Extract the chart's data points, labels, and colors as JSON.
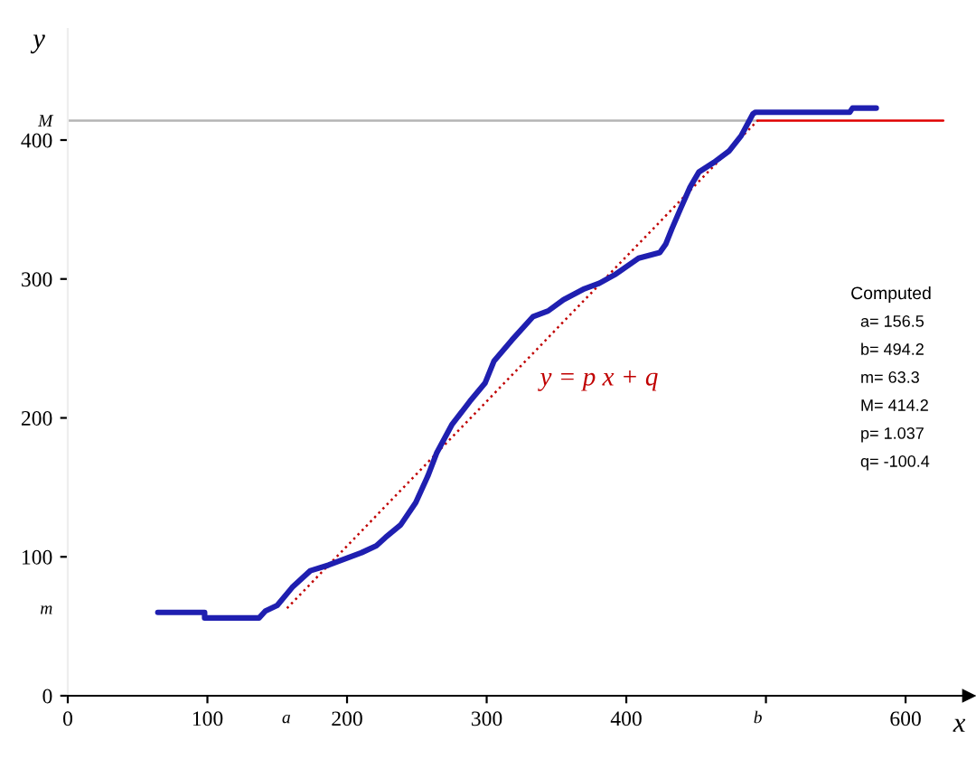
{
  "chart_data": {
    "type": "line",
    "xlabel": "x",
    "ylabel": "y",
    "xlim": [
      0,
      645
    ],
    "ylim": [
      0,
      480
    ],
    "xticks": [
      0,
      100,
      200,
      300,
      400,
      {
        "value": 500,
        "label": null
      },
      600,
      {
        "value": 156.5,
        "label": "a"
      },
      {
        "value": 494.2,
        "label": "b"
      }
    ],
    "yticks": [
      0,
      100,
      200,
      300,
      400,
      {
        "value": 63.3,
        "label": "m"
      },
      {
        "value": 414.2,
        "label": "M"
      }
    ],
    "series": [
      {
        "color": "#1f1fb0",
        "line_style": "solid",
        "x": [
          64.5,
          98,
          98,
          137,
          141.5,
          150,
          160.7,
          173.7,
          186.6,
          199.6,
          210.4,
          221,
          227.6,
          238.4,
          249.2,
          257.8,
          264.3,
          275,
          288,
          298.8,
          305.3,
          318,
          333.3,
          344,
          355,
          370,
          380.8,
          391.6,
          408.8,
          424,
          428.2,
          432.6,
          439,
          445.6,
          452,
          462.8,
          473.5,
          482.2,
          490.8,
          492.5,
          560,
          562,
          579
        ],
        "values": [
          60,
          60,
          56,
          56,
          61,
          65,
          78,
          90,
          94,
          99,
          103,
          108,
          114,
          123,
          139,
          158,
          175,
          195,
          212,
          225,
          241,
          256,
          273,
          277,
          285,
          293,
          297,
          303,
          315,
          319,
          325,
          336,
          351,
          366,
          377,
          384,
          392,
          403,
          419,
          420,
          420,
          423,
          423
        ]
      },
      {
        "color": "#b4b4b4",
        "line_style": "solid",
        "x": [
          0,
          494
        ],
        "values": [
          414,
          414
        ]
      },
      {
        "color": "#c00000",
        "line_style": "dotted",
        "x": [
          157,
          494
        ],
        "values": [
          63,
          414
        ]
      },
      {
        "color": "#e00000",
        "line_style": "solid",
        "x": [
          494,
          627
        ],
        "values": [
          414,
          414
        ]
      }
    ],
    "annotations": [
      "y = p x + q",
      "Computed",
      "a= 156.5",
      "b= 494.2",
      "m= 63.3",
      "M= 414.2",
      "p= 1.037",
      "q= -100.4"
    ],
    "grid": false,
    "marker": "none"
  }
}
